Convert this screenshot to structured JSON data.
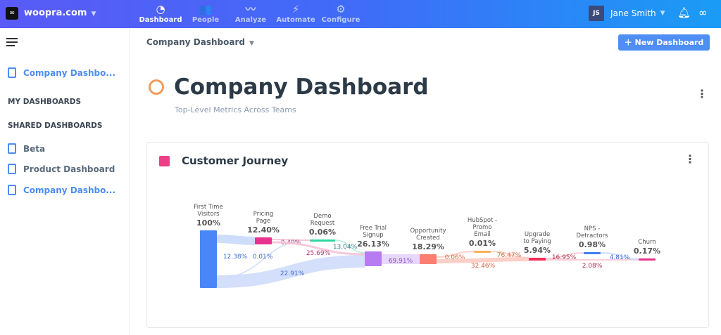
{
  "topbar": {
    "site": "woopra.com",
    "nav": [
      {
        "label": "Dashboard",
        "icon": "dashboard-icon",
        "glyph": "◔",
        "active": true
      },
      {
        "label": "People",
        "icon": "people-icon",
        "glyph": "👥"
      },
      {
        "label": "Analyze",
        "icon": "analyze-icon",
        "glyph": "〰"
      },
      {
        "label": "Automate",
        "icon": "automate-icon",
        "glyph": "⚡"
      },
      {
        "label": "Configure",
        "icon": "gear-icon",
        "glyph": "⚙"
      }
    ],
    "user_initials": "JS",
    "user_name": "Jane Smith"
  },
  "sidebar": {
    "current": "Company Dashbo...",
    "my_heading": "MY DASHBOARDS",
    "shared_heading": "SHARED DASHBOARDS",
    "shared": [
      "Beta",
      "Product Dashboard",
      "Company Dashbo..."
    ]
  },
  "header": {
    "breadcrumb": "Company Dashboard",
    "new_button": "New Dashboard",
    "title": "Company Dashboard",
    "subtitle": "Top-Level Metrics Across Teams"
  },
  "card": {
    "title": "Customer Journey"
  },
  "chart_data": {
    "type": "sankey",
    "nodes": [
      {
        "name": [
          "First Time",
          "Visitors"
        ],
        "value": "100%",
        "color": "#4a86f7"
      },
      {
        "name": [
          "Pricing",
          "Page"
        ],
        "value": "12.40%",
        "color": "#e8338e"
      },
      {
        "name": [
          "Demo",
          "Request"
        ],
        "value": "0.06%",
        "color": "#2bd6a0"
      },
      {
        "name": [
          "Free Trial",
          "Signup"
        ],
        "value": "26.13%",
        "color": "#b77cf2"
      },
      {
        "name": [
          "Opportunity",
          "Created"
        ],
        "value": "18.29%",
        "color": "#fb7f6f"
      },
      {
        "name": [
          "HubSpot -",
          "Promo",
          "Email"
        ],
        "value": "0.01%",
        "color": "#f7b15a"
      },
      {
        "name": [
          "Upgrade",
          "to Paying"
        ],
        "value": "5.94%",
        "color": "#f52a55"
      },
      {
        "name": [
          "NPS -",
          "Detractors"
        ],
        "value": "0.98%",
        "color": "#3f7ff5"
      },
      {
        "name": [
          "Churn"
        ],
        "value": "0.17%",
        "color": "#e8338e"
      }
    ],
    "links": [
      {
        "from": 0,
        "to": 1,
        "label": "12.38%"
      },
      {
        "from": 0,
        "to": 2,
        "label": "0.01%"
      },
      {
        "from": 0,
        "to": 3,
        "label": "22.91%"
      },
      {
        "from": 1,
        "to": 2,
        "label": "0.40%"
      },
      {
        "from": 1,
        "to": 3,
        "label": "25.69%"
      },
      {
        "from": 2,
        "to": 3,
        "label": "13.04%"
      },
      {
        "from": 3,
        "to": 4,
        "label": "69.91%"
      },
      {
        "from": 4,
        "to": 5,
        "label": "0.06%"
      },
      {
        "from": 4,
        "to": 6,
        "label": "32.46%"
      },
      {
        "from": 5,
        "to": 6,
        "label": "76.47%"
      },
      {
        "from": 6,
        "to": 7,
        "label": "16.95%"
      },
      {
        "from": 6,
        "to": 8,
        "label": "2.08%"
      },
      {
        "from": 7,
        "to": 8,
        "label": "4.81%"
      }
    ]
  }
}
